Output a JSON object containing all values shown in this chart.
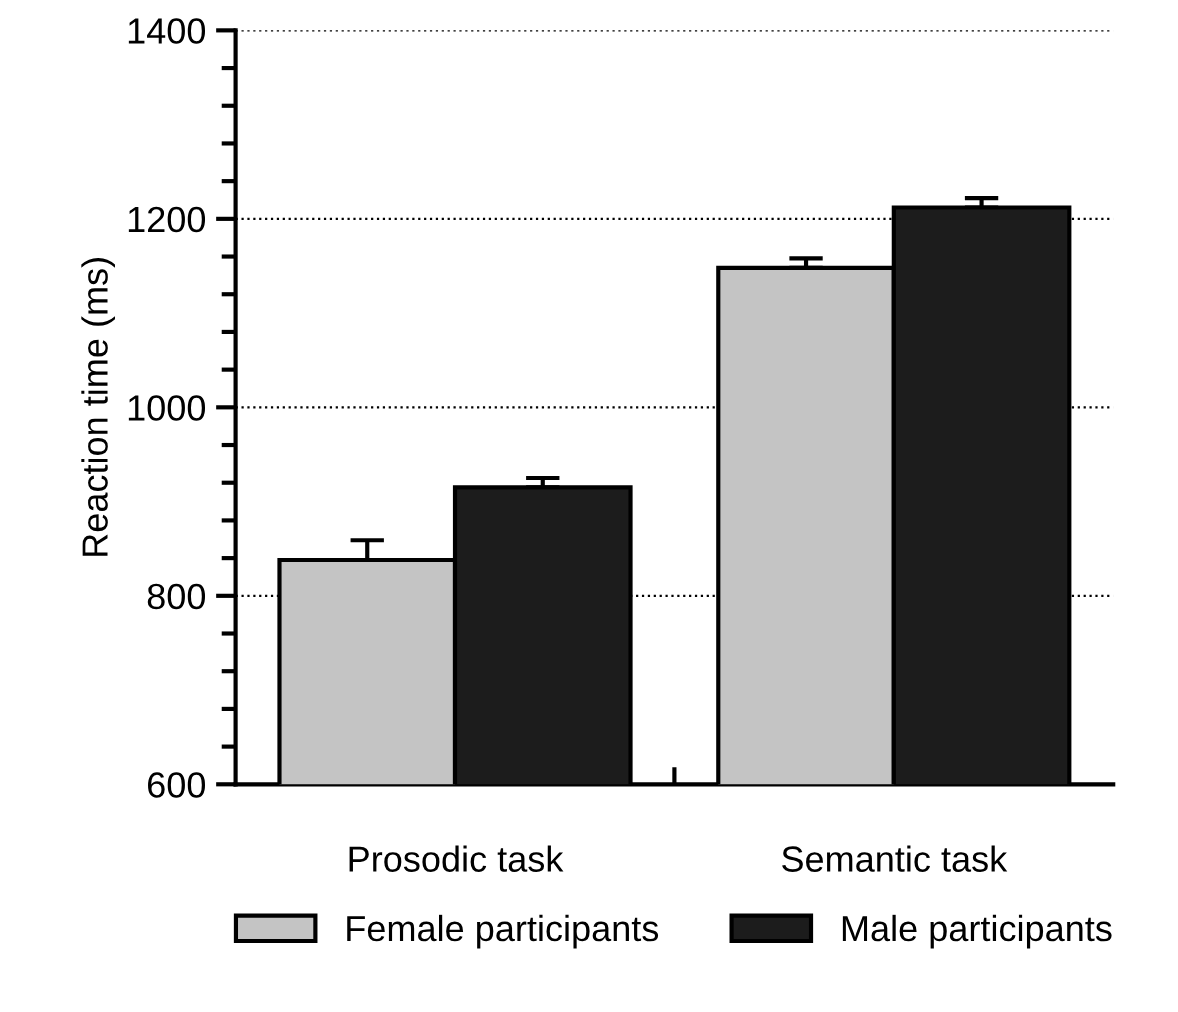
{
  "chart_data": {
    "type": "bar",
    "ylabel": "Reaction time (ms)",
    "categories": [
      "Prosodic task",
      "Semantic task"
    ],
    "series": [
      {
        "name": "Female participants",
        "color": "#c4c4c4",
        "values": [
          838,
          1148
        ],
        "errors": [
          21,
          10
        ]
      },
      {
        "name": "Male participants",
        "color": "#1c1c1c",
        "values": [
          915,
          1212
        ],
        "errors": [
          10,
          10
        ]
      }
    ],
    "ylim": [
      600,
      1400
    ],
    "yticks": [
      600,
      800,
      1000,
      1200,
      1400
    ],
    "grid": "y",
    "legend": "bottom"
  }
}
